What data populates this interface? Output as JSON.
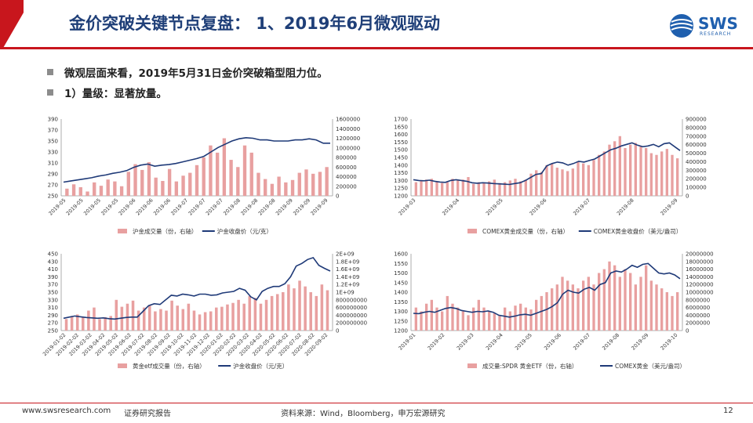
{
  "header": {
    "title": "金价突破关键节点复盘： 1、2019年6月微观驱动"
  },
  "logo": {
    "text": "SWS",
    "sub": "RESEARCH"
  },
  "bullets": [
    "微观层面来看，2019年5月31日金价突破箱型阻力位。",
    "1）量级：显著放量。"
  ],
  "footer": {
    "website": "www.swsresearch.com",
    "label": "证券研究报告",
    "source": "资料来源：Wind，Bloomberg，申万宏源研究",
    "page": "12"
  },
  "colors": {
    "bar": "#e8a0a0",
    "line": "#1f3a78",
    "brand": "#c8161d",
    "title": "#1f3f78"
  },
  "chart_data": [
    {
      "type": "bar+line",
      "left_ticks": [
        "250",
        "270",
        "290",
        "310",
        "330",
        "350",
        "370",
        "390"
      ],
      "right_ticks": [
        "0",
        "200000",
        "400000",
        "600000",
        "800000",
        "1000000",
        "1200000",
        "1400000",
        "1600000"
      ],
      "x_ticks": [
        "2019-05",
        "2019-05",
        "2019-05",
        "2019-05",
        "2019-06",
        "2019-06",
        "2019-06",
        "2019-07",
        "2019-07",
        "2019-07",
        "2019-08",
        "2019-08",
        "2019-08",
        "2019-09",
        "2019-09",
        "2019-09"
      ],
      "ylim": [
        250,
        390
      ],
      "y2lim": [
        0,
        1600000
      ],
      "line": [
        275,
        277,
        279,
        281,
        283,
        286,
        288,
        291,
        293,
        296,
        302,
        306,
        308,
        304,
        306,
        307,
        309,
        312,
        315,
        318,
        322,
        330,
        338,
        344,
        350,
        354,
        356,
        355,
        352,
        352,
        350,
        350,
        350,
        352,
        352,
        354,
        352,
        346,
        346
      ],
      "bars": [
        150000,
        240000,
        180000,
        90000,
        280000,
        210000,
        340000,
        300000,
        200000,
        500000,
        660000,
        540000,
        700000,
        380000,
        310000,
        560000,
        300000,
        420000,
        480000,
        640000,
        800000,
        1050000,
        900000,
        1200000,
        750000,
        600000,
        1050000,
        900000,
        480000,
        350000,
        250000,
        400000,
        280000,
        330000,
        480000,
        550000,
        460000,
        500000,
        600000
      ],
      "legend": [
        {
          "label": "沪金成交量（份，右轴）",
          "kind": "bar"
        },
        {
          "label": "沪金收盘价（元/克）",
          "kind": "line"
        }
      ]
    },
    {
      "type": "bar+line",
      "left_ticks": [
        "1200",
        "1250",
        "1300",
        "1350",
        "1400",
        "1450",
        "1500",
        "1550",
        "1600",
        "1650",
        "1700"
      ],
      "right_ticks": [
        "0",
        "100000",
        "200000",
        "300000",
        "400000",
        "500000",
        "600000",
        "700000",
        "800000",
        "900000"
      ],
      "x_ticks": [
        "2019-03",
        "2019-04",
        "2019-05",
        "2019-06",
        "2019-07",
        "2019-08",
        "2019-09"
      ],
      "ylim": [
        1200,
        1700
      ],
      "y2lim": [
        0,
        900000
      ],
      "line": [
        1305,
        1300,
        1298,
        1302,
        1295,
        1290,
        1288,
        1300,
        1305,
        1300,
        1295,
        1285,
        1282,
        1285,
        1283,
        1280,
        1278,
        1276,
        1274,
        1280,
        1285,
        1300,
        1320,
        1340,
        1345,
        1395,
        1410,
        1420,
        1415,
        1400,
        1410,
        1425,
        1420,
        1430,
        1440,
        1460,
        1480,
        1500,
        1510,
        1525,
        1535,
        1545,
        1530,
        1520,
        1525,
        1535,
        1520,
        1540,
        1545,
        1520,
        1495
      ],
      "bars": [
        160000,
        180000,
        190000,
        200000,
        170000,
        150000,
        160000,
        200000,
        180000,
        190000,
        220000,
        140000,
        160000,
        150000,
        170000,
        190000,
        150000,
        160000,
        180000,
        200000,
        170000,
        190000,
        260000,
        300000,
        280000,
        360000,
        380000,
        330000,
        310000,
        290000,
        320000,
        400000,
        380000,
        360000,
        420000,
        480000,
        520000,
        600000,
        640000,
        700000,
        560000,
        600000,
        620000,
        580000,
        560000,
        500000,
        480000,
        520000,
        550000,
        480000,
        440000
      ],
      "legend": [
        {
          "label": "COMEX黄金成交量（份，右轴）",
          "kind": "bar"
        },
        {
          "label": "COMEX黄金收盘价（美元/盎司）",
          "kind": "line"
        }
      ]
    },
    {
      "type": "bar+line",
      "left_ticks": [
        "250",
        "270",
        "290",
        "310",
        "330",
        "350",
        "370",
        "390",
        "410",
        "430",
        "450"
      ],
      "right_ticks": [
        "0",
        "200000000",
        "400000000",
        "600000000",
        "800000000",
        "1E+09",
        "1.2E+09",
        "1.4E+09",
        "1.6E+09",
        "1.8E+09",
        "2E+09"
      ],
      "x_ticks": [
        "2019-01-02",
        "2019-02-02",
        "2019-03-02",
        "2019-04-02",
        "2019-05-02",
        "2019-06-02",
        "2019-07-02",
        "2019-08-02",
        "2019-09-02",
        "2019-10-02",
        "2019-11-02",
        "2019-12-02",
        "2020-01-02",
        "2020-02-02",
        "2020-03-02",
        "2020-04-02",
        "2020-05-02",
        "2020-06-02",
        "2020-07-02",
        "2020-08-02",
        "2020-09-02"
      ],
      "ylim": [
        250,
        450
      ],
      "y2lim": [
        0,
        2000000000
      ],
      "line": [
        282,
        285,
        288,
        286,
        284,
        283,
        282,
        283,
        281,
        280,
        282,
        284,
        285,
        285,
        300,
        315,
        320,
        318,
        330,
        342,
        340,
        345,
        343,
        340,
        345,
        345,
        342,
        343,
        348,
        350,
        352,
        360,
        355,
        338,
        330,
        352,
        360,
        365,
        365,
        372,
        390,
        418,
        425,
        435,
        440,
        420,
        412,
        405
      ],
      "bars": [
        300000000,
        380000000,
        420000000,
        350000000,
        520000000,
        600000000,
        300000000,
        350000000,
        380000000,
        800000000,
        620000000,
        700000000,
        780000000,
        520000000,
        600000000,
        650000000,
        500000000,
        560000000,
        520000000,
        780000000,
        650000000,
        560000000,
        700000000,
        520000000,
        420000000,
        480000000,
        500000000,
        600000000,
        620000000,
        680000000,
        720000000,
        800000000,
        700000000,
        900000000,
        850000000,
        700000000,
        800000000,
        900000000,
        950000000,
        1000000000,
        1200000000,
        1100000000,
        1300000000,
        1150000000,
        1000000000,
        900000000,
        1200000000,
        1050000000
      ],
      "legend": [
        {
          "label": "黄金etf成交量（份，右轴）",
          "kind": "bar"
        },
        {
          "label": "沪金收盘价（元/克）",
          "kind": "line"
        }
      ]
    },
    {
      "type": "bar+line",
      "left_ticks": [
        "1200",
        "1250",
        "1300",
        "1350",
        "1400",
        "1450",
        "1500",
        "1550",
        "1600"
      ],
      "right_ticks": [
        "0",
        "2000000",
        "4000000",
        "6000000",
        "8000000",
        "10000000",
        "12000000",
        "14000000",
        "16000000",
        "18000000",
        "20000000"
      ],
      "x_ticks": [
        "2019-01",
        "2019-02",
        "2019-03",
        "2019-04",
        "2019-05",
        "2019-06",
        "2019-07",
        "2019-08",
        "2019-09",
        "2019-10"
      ],
      "ylim": [
        1200,
        1600
      ],
      "y2lim": [
        0,
        20000000
      ],
      "line": [
        1290,
        1288,
        1295,
        1300,
        1295,
        1305,
        1315,
        1320,
        1315,
        1305,
        1300,
        1295,
        1300,
        1298,
        1302,
        1295,
        1280,
        1275,
        1270,
        1275,
        1282,
        1285,
        1280,
        1290,
        1300,
        1310,
        1325,
        1345,
        1390,
        1410,
        1400,
        1395,
        1415,
        1425,
        1410,
        1440,
        1450,
        1500,
        1510,
        1505,
        1520,
        1540,
        1530,
        1545,
        1550,
        1525,
        1500,
        1495,
        1500,
        1490,
        1470
      ],
      "bars": [
        6000000,
        5000000,
        7000000,
        8000000,
        6000000,
        5000000,
        9000000,
        7000000,
        6000000,
        5000000,
        4000000,
        6000000,
        8000000,
        6000000,
        5000000,
        4500000,
        4000000,
        6000000,
        5000000,
        6500000,
        7000000,
        6000000,
        5500000,
        8000000,
        9000000,
        10000000,
        11000000,
        12000000,
        14000000,
        13000000,
        12000000,
        11000000,
        13000000,
        14000000,
        12000000,
        15000000,
        16000000,
        18000000,
        17000000,
        14000000,
        16000000,
        15000000,
        12000000,
        14000000,
        17000000,
        13000000,
        12000000,
        11000000,
        10000000,
        9000000,
        10000000
      ],
      "legend": [
        {
          "label": "成交量:SPDR 黄金ETF（份，右轴）",
          "kind": "bar"
        },
        {
          "label": "COMEX黄金（美元/盎司）",
          "kind": "line"
        }
      ]
    }
  ]
}
